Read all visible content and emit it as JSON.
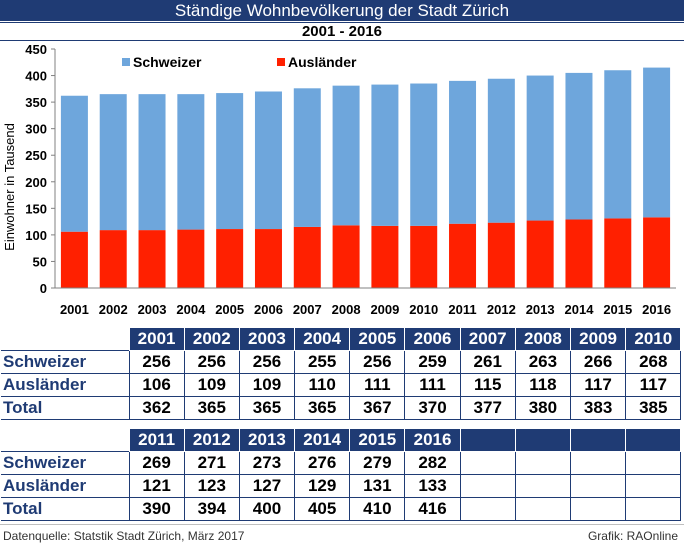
{
  "title": "Ständige Wohnbevölkerung der Stadt Zürich",
  "subtitle": "2001 - 2016",
  "colors": {
    "schweizer": "#6ea6dc",
    "auslaender": "#ff2000",
    "header": "#1f3b74"
  },
  "chart_data": {
    "type": "bar",
    "stacked": true,
    "categories": [
      "2001",
      "2002",
      "2003",
      "2004",
      "2005",
      "2006",
      "2007",
      "2008",
      "2009",
      "2010",
      "2011",
      "2012",
      "2013",
      "2014",
      "2015",
      "2016"
    ],
    "series": [
      {
        "name": "Ausländer",
        "values": [
          106,
          109,
          109,
          110,
          111,
          111,
          115,
          118,
          117,
          117,
          121,
          123,
          127,
          129,
          131,
          133
        ]
      },
      {
        "name": "Schweizer",
        "values": [
          256,
          256,
          256,
          255,
          256,
          259,
          261,
          263,
          266,
          268,
          269,
          271,
          273,
          276,
          279,
          282
        ]
      }
    ],
    "ylabel": "Einwohner in Tausend",
    "ylim": [
      0,
      450
    ],
    "yticks": [
      0,
      50,
      100,
      150,
      200,
      250,
      300,
      350,
      400,
      450
    ],
    "grid": false,
    "legend": "top-left"
  },
  "table": {
    "row_labels": [
      "Schweizer",
      "Ausländer",
      "Total"
    ],
    "part1": {
      "years": [
        "2001",
        "2002",
        "2003",
        "2004",
        "2005",
        "2006",
        "2007",
        "2008",
        "2009",
        "2010"
      ],
      "schweizer": [
        "256",
        "256",
        "256",
        "255",
        "256",
        "259",
        "261",
        "263",
        "266",
        "268"
      ],
      "auslaender": [
        "106",
        "109",
        "109",
        "110",
        "111",
        "111",
        "115",
        "118",
        "117",
        "117"
      ],
      "total": [
        "362",
        "365",
        "365",
        "365",
        "367",
        "370",
        "377",
        "380",
        "383",
        "385"
      ]
    },
    "part2": {
      "years": [
        "2011",
        "2012",
        "2013",
        "2014",
        "2015",
        "2016"
      ],
      "schweizer": [
        "269",
        "271",
        "273",
        "276",
        "279",
        "282"
      ],
      "auslaender": [
        "121",
        "123",
        "127",
        "129",
        "131",
        "133"
      ],
      "total": [
        "390",
        "394",
        "400",
        "405",
        "410",
        "416"
      ]
    }
  },
  "footer": {
    "source": "Datenquelle: Statstik Stadt Zürich, März 2017",
    "credit": "Grafik: RAOnline"
  }
}
